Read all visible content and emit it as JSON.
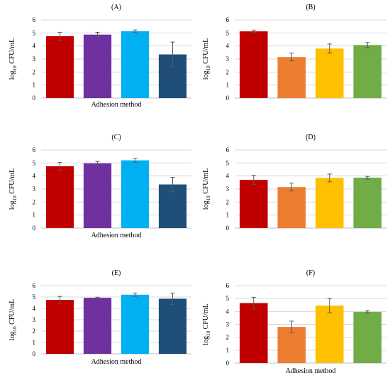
{
  "figure": {
    "colors": {
      "red": "#C00000",
      "purple": "#7030A0",
      "cyan": "#00B0F0",
      "navy": "#1F4E79",
      "orange": "#ED7D31",
      "gold": "#FFC000",
      "green": "#70AD47",
      "grid": "#d9d9d9",
      "errorbar": "#595959"
    }
  },
  "chart_data": [
    {
      "type": "bar",
      "title": "(A)",
      "xlabel": "Adhesion method",
      "ylabel": "log10 CFU/mL",
      "ylim": [
        0,
        6
      ],
      "yticks": [
        0,
        1,
        2,
        3,
        4,
        5,
        6
      ],
      "grid": true,
      "values": [
        4.75,
        4.87,
        5.13,
        3.35
      ],
      "errors": [
        0.3,
        0.18,
        0.1,
        0.95
      ],
      "bar_colors": [
        "#C00000",
        "#7030A0",
        "#00B0F0",
        "#1F4E79"
      ]
    },
    {
      "type": "bar",
      "title": "(B)",
      "xlabel": "",
      "ylabel": "log10 CFU/mL",
      "ylim": [
        0,
        6
      ],
      "yticks": [
        0,
        1,
        2,
        3,
        4,
        5,
        6
      ],
      "grid": true,
      "values": [
        5.12,
        3.15,
        3.8,
        4.07
      ],
      "errors": [
        0.1,
        0.3,
        0.35,
        0.2
      ],
      "bar_colors": [
        "#C00000",
        "#ED7D31",
        "#FFC000",
        "#70AD47"
      ]
    },
    {
      "type": "bar",
      "title": "(C)",
      "xlabel": "Adhesion method",
      "ylabel": "log10 CFU/mL",
      "ylim": [
        0,
        6
      ],
      "yticks": [
        0,
        1,
        2,
        3,
        4,
        5,
        6
      ],
      "grid": true,
      "values": [
        4.75,
        4.97,
        5.2,
        3.35
      ],
      "errors": [
        0.3,
        0.15,
        0.15,
        0.55
      ],
      "bar_colors": [
        "#C00000",
        "#7030A0",
        "#00B0F0",
        "#1F4E79"
      ]
    },
    {
      "type": "bar",
      "title": "(D)",
      "xlabel": "",
      "ylabel": "log10 CFU/mL",
      "ylim": [
        0,
        6
      ],
      "yticks": [
        0,
        1,
        2,
        3,
        4,
        5,
        6
      ],
      "grid": true,
      "values": [
        3.7,
        3.15,
        3.85,
        3.87
      ],
      "errors": [
        0.35,
        0.3,
        0.3,
        0.1
      ],
      "bar_colors": [
        "#C00000",
        "#ED7D31",
        "#FFC000",
        "#70AD47"
      ]
    },
    {
      "type": "bar",
      "title": "(E)",
      "xlabel": "Adhesion method",
      "ylabel": "log10 CFU/mL",
      "ylim": [
        0,
        6
      ],
      "yticks": [
        0,
        1,
        2,
        3,
        4,
        5,
        6
      ],
      "grid": true,
      "values": [
        4.75,
        4.93,
        5.2,
        4.85
      ],
      "errors": [
        0.3,
        0.05,
        0.15,
        0.5
      ],
      "bar_colors": [
        "#C00000",
        "#7030A0",
        "#00B0F0",
        "#1F4E79"
      ]
    },
    {
      "type": "bar",
      "title": "(F)",
      "xlabel": "Adhesion method",
      "ylabel": "log10 CFU/mL",
      "ylim": [
        0,
        6
      ],
      "yticks": [
        0,
        1,
        2,
        3,
        4,
        5,
        6
      ],
      "grid": true,
      "values": [
        4.65,
        2.8,
        4.45,
        3.97
      ],
      "errors": [
        0.45,
        0.45,
        0.55,
        0.1
      ],
      "bar_colors": [
        "#C00000",
        "#ED7D31",
        "#FFC000",
        "#70AD47"
      ]
    }
  ]
}
